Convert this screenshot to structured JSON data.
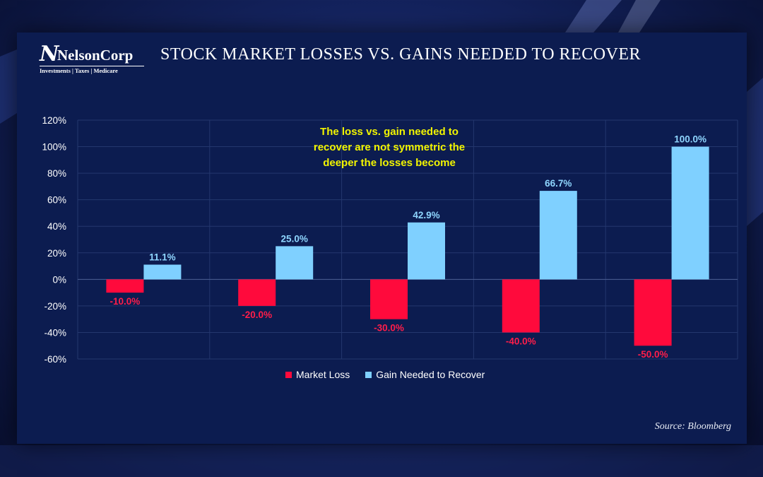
{
  "logo": {
    "mark": "N",
    "name": "NelsonCorp",
    "tagline": "Investments | Taxes | Medicare"
  },
  "title": "STOCK MARKET LOSSES VS. GAINS NEEDED TO RECOVER",
  "annotation": [
    "The loss vs. gain needed to",
    "recover are not symmetric the",
    "deeper the losses become"
  ],
  "source": "Source: Bloomberg",
  "colors": {
    "loss": "#ff0a3c",
    "gain": "#7fd0ff",
    "loss_label": "#ff1d4a",
    "gain_label": "#8fd6ff",
    "annotation": "#f2f500"
  },
  "chart_data": {
    "type": "bar",
    "categories": [
      "",
      "",
      "",
      "",
      ""
    ],
    "series": [
      {
        "name": "Market Loss",
        "values": [
          -10.0,
          -20.0,
          -30.0,
          -40.0,
          -50.0
        ],
        "labels": [
          "-10.0%",
          "-20.0%",
          "-30.0%",
          "-40.0%",
          "-50.0%"
        ]
      },
      {
        "name": "Gain Needed to Recover",
        "values": [
          11.1,
          25.0,
          42.9,
          66.7,
          100.0
        ],
        "labels": [
          "11.1%",
          "25.0%",
          "42.9%",
          "66.7%",
          "100.0%"
        ]
      }
    ],
    "yticks": [
      "120%",
      "100%",
      "80%",
      "60%",
      "40%",
      "20%",
      "0%",
      "-20%",
      "-40%",
      "-60%"
    ],
    "ylim": [
      -60,
      120
    ],
    "grid": true,
    "legend": "bottom"
  }
}
